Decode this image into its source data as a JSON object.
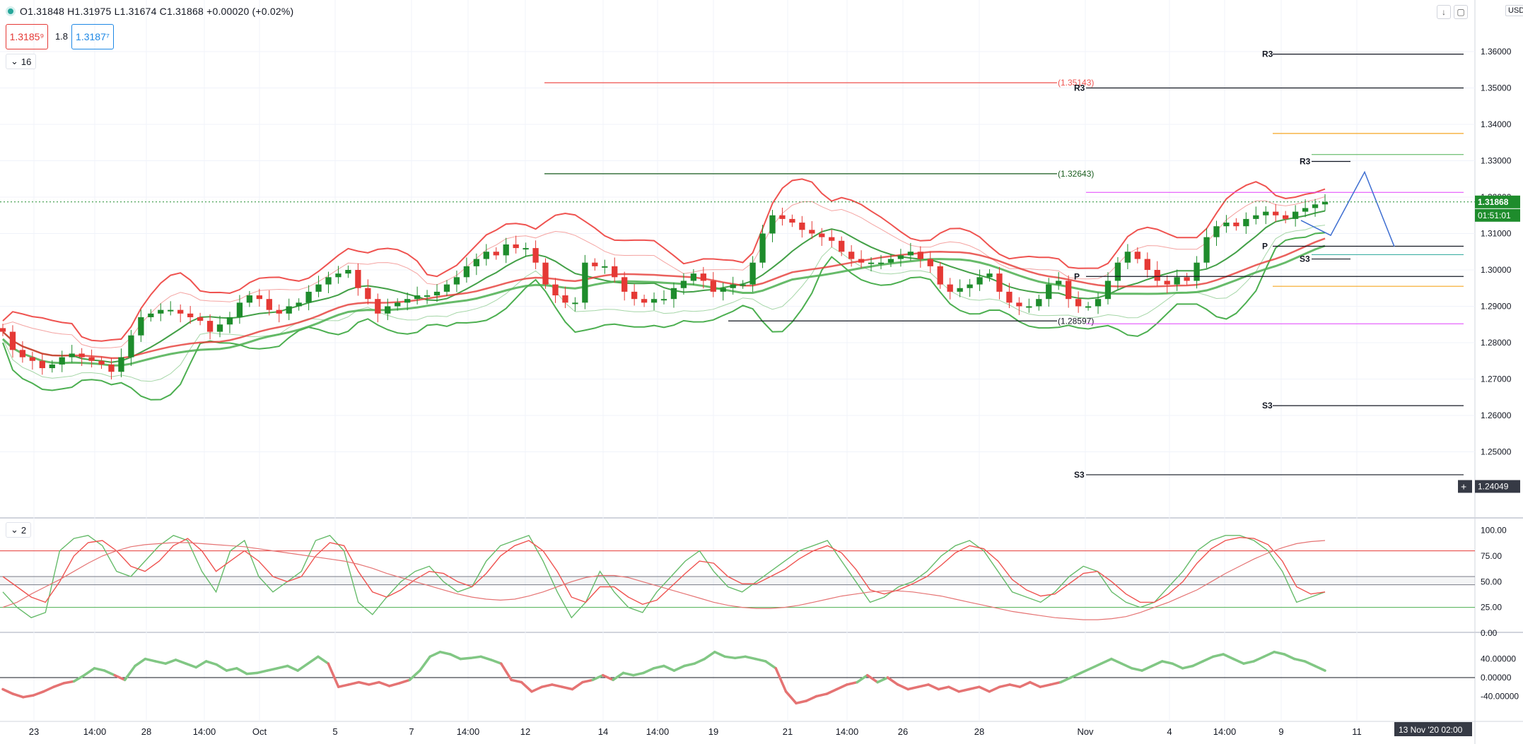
{
  "legend": {
    "ohlc": "O1.31848 H1.31975 L1.31674 C1.31868 +0.00020 (+0.02%)"
  },
  "trade": {
    "sell": "1.3185⁹",
    "spread": "1.8",
    "buy": "1.3187⁷"
  },
  "panes": {
    "main_collapse": "16",
    "stoch_collapse": "2"
  },
  "currency": "USD",
  "icons": {
    "down_arrow": "arrow-down-icon",
    "square": "maximize-icon",
    "plus": "crosshair-plus-icon"
  },
  "colors": {
    "up": "#1e8c2c",
    "down": "#e53935",
    "pivot": "#131722",
    "hline_red": "#ef5350",
    "hline_green": "#1b5e20",
    "pink": "#e040fb",
    "orange": "#f5a623",
    "teal": "#26a69a",
    "blue": "#3f6fd1"
  },
  "chart_data": [
    {
      "type": "candlestick",
      "title": "",
      "x_tick_labels": [
        "23",
        "14:00",
        "28",
        "14:00",
        "Oct",
        "5",
        "7",
        "14:00",
        "12",
        "14",
        "14:00",
        "19",
        "21",
        "14:00",
        "26",
        "28",
        "Nov",
        "4",
        "14:00",
        "9",
        "11"
      ],
      "y_tick_labels": [
        "1.36000",
        "1.35000",
        "1.34000",
        "1.33000",
        "1.32000",
        "1.31000",
        "1.30000",
        "1.29000",
        "1.28000",
        "1.27000",
        "1.26000",
        "1.25000"
      ],
      "ylim": [
        1.2405,
        1.3625
      ],
      "last_price": "1.31868",
      "countdown": "01:51:01",
      "crosshair_price": "1.24049",
      "crosshair_date": "13 Nov '20  02:00",
      "close_series_approx": [
        1.283,
        1.278,
        1.276,
        1.275,
        1.273,
        1.274,
        1.276,
        1.277,
        1.276,
        1.275,
        1.274,
        1.272,
        1.276,
        1.282,
        1.287,
        1.288,
        1.289,
        1.289,
        1.288,
        1.287,
        1.286,
        1.283,
        1.285,
        1.287,
        1.291,
        1.293,
        1.292,
        1.289,
        1.288,
        1.29,
        1.291,
        1.294,
        1.296,
        1.298,
        1.299,
        1.3,
        1.295,
        1.292,
        1.288,
        1.29,
        1.291,
        1.292,
        1.293,
        1.293,
        1.294,
        1.296,
        1.298,
        1.301,
        1.303,
        1.305,
        1.304,
        1.307,
        1.306,
        1.306,
        1.302,
        1.296,
        1.293,
        1.291,
        1.291,
        1.302,
        1.301,
        1.301,
        1.298,
        1.294,
        1.292,
        1.291,
        1.292,
        1.292,
        1.295,
        1.297,
        1.299,
        1.297,
        1.294,
        1.295,
        1.296,
        1.296,
        1.302,
        1.31,
        1.315,
        1.314,
        1.313,
        1.311,
        1.31,
        1.309,
        1.308,
        1.305,
        1.303,
        1.302,
        1.302,
        1.302,
        1.303,
        1.304,
        1.305,
        1.303,
        1.301,
        1.296,
        1.294,
        1.295,
        1.296,
        1.298,
        1.299,
        1.294,
        1.291,
        1.29,
        1.29,
        1.292,
        1.296,
        1.297,
        1.292,
        1.29,
        1.29,
        1.292,
        1.297,
        1.302,
        1.305,
        1.303,
        1.3,
        1.297,
        1.296,
        1.298,
        1.297,
        1.302,
        1.309,
        1.312,
        1.313,
        1.312,
        1.314,
        1.315,
        1.316,
        1.315,
        1.314,
        1.316,
        1.317,
        1.318,
        1.3187
      ],
      "overlays": {
        "horizontal_levels": [
          {
            "label": "(1.35143)",
            "value": 1.35143,
            "color": "red"
          },
          {
            "label": "(1.32643)",
            "value": 1.32643,
            "color": "green"
          },
          {
            "label": "(1.28597)",
            "value": 1.28597,
            "color": "black"
          }
        ],
        "pivot_labels": {
          "r3_top": "R3",
          "r3_mid": "R3",
          "r3_right": "R3",
          "p1": "P",
          "p2": "P",
          "s3_right": "S3",
          "s3_low": "S3",
          "s3_bottom": "S3"
        },
        "pivot_values": {
          "r3_top": 1.3593,
          "r3_mid": 1.35,
          "r3_right": 1.3298,
          "p_mid": 1.2982,
          "p_right": 1.3065,
          "s3_right": 1.303,
          "s3_low": 1.2627,
          "s3_bottom": 1.2437
        },
        "other_levels": {
          "orange_upper": 1.3375,
          "orange_lower": 1.2955,
          "teal_upper": 1.3317,
          "teal_lower": 1.3042,
          "pink_upper": 1.3213,
          "pink_lower": 1.2852
        },
        "projection_path": [
          1.3136,
          1.3269,
          1.3064
        ],
        "indicators": [
          "Bollinger Bands (red upper)",
          "Moving averages (green/red)"
        ]
      }
    },
    {
      "type": "line",
      "title": "",
      "y_tick_labels": [
        "100.00",
        "75.00",
        "50.00",
        "25.00",
        "0.00"
      ],
      "ylim": [
        0,
        100
      ],
      "levels": [
        80,
        55,
        47,
        25
      ],
      "series": [
        {
          "values": [
            40,
            25,
            15,
            20,
            80,
            92,
            95,
            85,
            60,
            55,
            70,
            85,
            95,
            90,
            60,
            40,
            80,
            90,
            55,
            40,
            50,
            60,
            90,
            95,
            80,
            30,
            18,
            35,
            50,
            60,
            65,
            50,
            40,
            45,
            70,
            85,
            90,
            95,
            70,
            40,
            15,
            30,
            60,
            40,
            25,
            20,
            40,
            55,
            70,
            80,
            60,
            45,
            40,
            50,
            60,
            70,
            80,
            85,
            90,
            70,
            50,
            30,
            35,
            45,
            50,
            60,
            75,
            85,
            90,
            80,
            60,
            40,
            35,
            30,
            40,
            55,
            65,
            60,
            40,
            30,
            25,
            30,
            45,
            60,
            80,
            90,
            95,
            95,
            90,
            80,
            60,
            30,
            35,
            40
          ]
        },
        {
          "values": [
            55,
            45,
            35,
            30,
            50,
            75,
            88,
            90,
            80,
            65,
            60,
            70,
            85,
            92,
            80,
            60,
            70,
            80,
            70,
            55,
            50,
            55,
            75,
            88,
            85,
            60,
            40,
            35,
            42,
            52,
            60,
            58,
            50,
            45,
            58,
            75,
            85,
            90,
            80,
            60,
            35,
            30,
            45,
            45,
            35,
            28,
            32,
            45,
            58,
            70,
            68,
            55,
            48,
            48,
            55,
            62,
            72,
            80,
            85,
            78,
            62,
            42,
            38,
            42,
            48,
            55,
            66,
            78,
            85,
            82,
            70,
            52,
            42,
            36,
            38,
            48,
            58,
            60,
            50,
            38,
            30,
            30,
            38,
            50,
            68,
            82,
            90,
            93,
            92,
            86,
            70,
            45,
            38,
            40
          ]
        },
        {
          "values": [
            25,
            30,
            38,
            45,
            52,
            60,
            68,
            75,
            80,
            84,
            86,
            87,
            88,
            88,
            87,
            86,
            85,
            84,
            82,
            80,
            78,
            76,
            74,
            72,
            70,
            67,
            63,
            58,
            54,
            50,
            46,
            42,
            38,
            35,
            33,
            32,
            33,
            36,
            40,
            45,
            50,
            54,
            56,
            56,
            54,
            50,
            46,
            42,
            38,
            34,
            30,
            27,
            25,
            24,
            24,
            25,
            27,
            30,
            33,
            36,
            38,
            40,
            41,
            41,
            40,
            38,
            36,
            33,
            30,
            27,
            24,
            21,
            19,
            17,
            15,
            14,
            13,
            13,
            14,
            16,
            20,
            25,
            30,
            36,
            42,
            50,
            58,
            65,
            72,
            78,
            83,
            87,
            89,
            90
          ]
        }
      ]
    },
    {
      "type": "area",
      "title": "",
      "y_tick_labels": [
        "40.00000",
        "0.00000",
        "-40.00000"
      ],
      "ylim": [
        -75,
        75
      ],
      "values": [
        -25,
        -35,
        -42,
        -38,
        -30,
        -20,
        -12,
        -8,
        5,
        20,
        15,
        5,
        -5,
        25,
        40,
        35,
        30,
        38,
        30,
        22,
        35,
        28,
        15,
        20,
        8,
        10,
        15,
        20,
        25,
        15,
        30,
        45,
        30,
        -20,
        -15,
        -10,
        -15,
        -10,
        -18,
        -12,
        -5,
        15,
        45,
        55,
        50,
        40,
        42,
        45,
        38,
        30,
        -5,
        -10,
        -30,
        -20,
        -15,
        -20,
        -25,
        -10,
        -5,
        5,
        -5,
        10,
        5,
        10,
        20,
        25,
        15,
        25,
        30,
        40,
        55,
        45,
        42,
        45,
        40,
        35,
        20,
        -30,
        -55,
        -50,
        -40,
        -35,
        -25,
        -15,
        -10,
        5,
        -10,
        0,
        -15,
        -25,
        -20,
        -15,
        -25,
        -20,
        -30,
        -25,
        -20,
        -30,
        -20,
        -15,
        -20,
        -10,
        -20,
        -15,
        -10,
        0,
        10,
        20,
        30,
        40,
        30,
        20,
        15,
        25,
        35,
        30,
        20,
        25,
        35,
        45,
        50,
        40,
        30,
        35,
        45,
        55,
        50,
        40,
        35,
        25,
        15
      ]
    }
  ]
}
